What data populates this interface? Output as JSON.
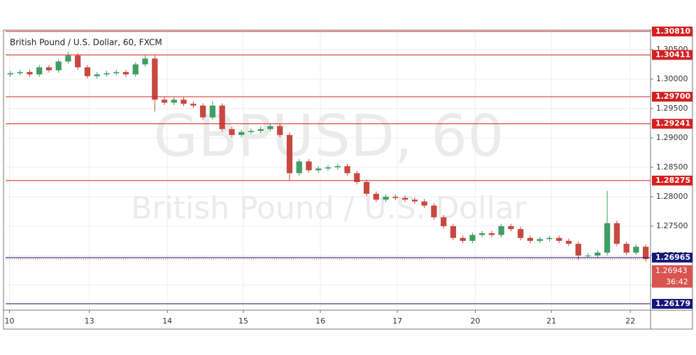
{
  "chart_data": {
    "type": "candlestick",
    "title": "British Pound / U.S. Dollar, 60, FXCM",
    "watermark": "GBPUSD, 60",
    "watermark_subtitle": "British Pound / U.S. Dollar",
    "up_color": "#3f9e63",
    "down_color": "#c8483f",
    "grid": true,
    "xlim": [
      0,
      67
    ],
    "xticks": [
      {
        "value": 0.4,
        "label": "10"
      },
      {
        "value": 8.7,
        "label": "13"
      },
      {
        "value": 16.8,
        "label": "14"
      },
      {
        "value": 24.7,
        "label": "15"
      },
      {
        "value": 32.7,
        "label": "16"
      },
      {
        "value": 40.7,
        "label": "17"
      },
      {
        "value": 48.8,
        "label": "20"
      },
      {
        "value": 56.7,
        "label": "21"
      },
      {
        "value": 64.9,
        "label": "22"
      }
    ],
    "ylim": [
      1.26071,
      1.30833
    ],
    "yticks": [
      {
        "value": 1.305,
        "label": "1.30500"
      },
      {
        "value": 1.3,
        "label": "1.30000"
      },
      {
        "value": 1.295,
        "label": "1.29500"
      },
      {
        "value": 1.29,
        "label": "1.29000"
      },
      {
        "value": 1.285,
        "label": "1.28500"
      },
      {
        "value": 1.28,
        "label": "1.28000"
      },
      {
        "value": 1.275,
        "label": "1.27500"
      },
      {
        "value": 1.27,
        "label": "1.27000"
      },
      {
        "value": 1.265,
        "label": "1.26500"
      }
    ],
    "open": [
      1.3008,
      1.301,
      1.3012,
      1.3008,
      1.302,
      1.3015,
      1.303,
      1.304,
      1.302,
      1.3005,
      1.3008,
      1.301,
      1.3012,
      1.3008,
      1.3025,
      1.3035,
      1.2965,
      1.296,
      1.2965,
      1.2958,
      1.2955,
      1.2935,
      1.2955,
      1.2915,
      1.2905,
      1.291,
      1.2912,
      1.2915,
      1.292,
      1.2905,
      1.284,
      1.286,
      1.2845,
      1.2848,
      1.285,
      1.2852,
      1.284,
      1.2825,
      1.2805,
      1.2795,
      1.28,
      1.2798,
      1.2795,
      1.2792,
      1.2785,
      1.2765,
      1.275,
      1.273,
      1.2725,
      1.2735,
      1.2738,
      1.2735,
      1.275,
      1.2745,
      1.273,
      1.2725,
      1.2728,
      1.273,
      1.2725,
      1.272,
      1.27,
      1.27,
      1.2705,
      1.2755,
      1.272,
      1.2705,
      1.2715
    ],
    "high": [
      1.3014,
      1.3016,
      1.3016,
      1.3024,
      1.3024,
      1.3034,
      1.3046,
      1.3044,
      1.3024,
      1.3012,
      1.3014,
      1.3016,
      1.3016,
      1.3029,
      1.304,
      1.304,
      1.297,
      1.2969,
      1.2969,
      1.2962,
      1.2959,
      1.2962,
      1.2959,
      1.2919,
      1.2914,
      1.2916,
      1.2919,
      1.2924,
      1.2924,
      1.2909,
      1.2864,
      1.2864,
      1.2852,
      1.2854,
      1.2856,
      1.2856,
      1.2844,
      1.2829,
      1.2809,
      1.2804,
      1.2804,
      1.2802,
      1.2799,
      1.2796,
      1.2789,
      1.2769,
      1.2754,
      1.2734,
      1.2739,
      1.2742,
      1.2742,
      1.2754,
      1.2754,
      1.2749,
      1.2734,
      1.2732,
      1.2734,
      1.2734,
      1.2729,
      1.2724,
      1.2704,
      1.2709,
      1.281,
      1.2759,
      1.2724,
      1.2719,
      1.2719
    ],
    "low": [
      1.3004,
      1.3006,
      1.3004,
      1.3004,
      1.3011,
      1.3011,
      1.3026,
      1.3016,
      1.3001,
      1.3001,
      1.3004,
      1.3006,
      1.3004,
      1.3004,
      1.3021,
      1.2945,
      1.2956,
      1.2956,
      1.2954,
      1.2951,
      1.2931,
      1.2931,
      1.2911,
      1.2901,
      1.2901,
      1.2906,
      1.2908,
      1.2911,
      1.2901,
      1.2828,
      1.2836,
      1.2841,
      1.2841,
      1.2844,
      1.2846,
      1.2836,
      1.2821,
      1.2801,
      1.2791,
      1.2791,
      1.2794,
      1.2791,
      1.2788,
      1.2781,
      1.2761,
      1.2746,
      1.2726,
      1.2721,
      1.2721,
      1.2731,
      1.2731,
      1.2731,
      1.2741,
      1.2726,
      1.2721,
      1.2721,
      1.2724,
      1.2721,
      1.2716,
      1.2692,
      1.2696,
      1.2696,
      1.27,
      1.2716,
      1.2701,
      1.2701,
      1.269
    ],
    "close": [
      1.301,
      1.3012,
      1.3008,
      1.302,
      1.3015,
      1.303,
      1.304,
      1.302,
      1.3005,
      1.3008,
      1.301,
      1.3012,
      1.3008,
      1.3025,
      1.3035,
      1.2965,
      1.296,
      1.2965,
      1.2958,
      1.2955,
      1.2935,
      1.2955,
      1.2915,
      1.2905,
      1.291,
      1.2912,
      1.2915,
      1.292,
      1.2905,
      1.284,
      1.286,
      1.2845,
      1.2848,
      1.285,
      1.2852,
      1.284,
      1.2825,
      1.2805,
      1.2795,
      1.28,
      1.2798,
      1.2795,
      1.2792,
      1.2785,
      1.2765,
      1.275,
      1.273,
      1.2725,
      1.2735,
      1.2738,
      1.2735,
      1.275,
      1.2745,
      1.273,
      1.2725,
      1.2728,
      1.273,
      1.2725,
      1.272,
      1.27,
      1.27,
      1.2705,
      1.2755,
      1.272,
      1.2705,
      1.2715,
      1.2694
    ],
    "levels": [
      {
        "value": 1.3081,
        "label": "1.30810",
        "color": "#d42020"
      },
      {
        "value": 1.30411,
        "label": "1.30411",
        "color": "#d42020"
      },
      {
        "value": 1.297,
        "label": "1.29700",
        "color": "#d42020"
      },
      {
        "value": 1.29241,
        "label": "1.29241",
        "color": "#d42020"
      },
      {
        "value": 1.28275,
        "label": "1.28275",
        "color": "#d42020"
      },
      {
        "value": 1.26965,
        "label": "1.26965",
        "color": "#16167a"
      },
      {
        "value": 1.26179,
        "label": "1.26179",
        "color": "#16167a"
      }
    ],
    "current_price": {
      "value": 1.26943,
      "label": "1.26943",
      "color": "#d9534f",
      "countdown": "36:42"
    }
  }
}
